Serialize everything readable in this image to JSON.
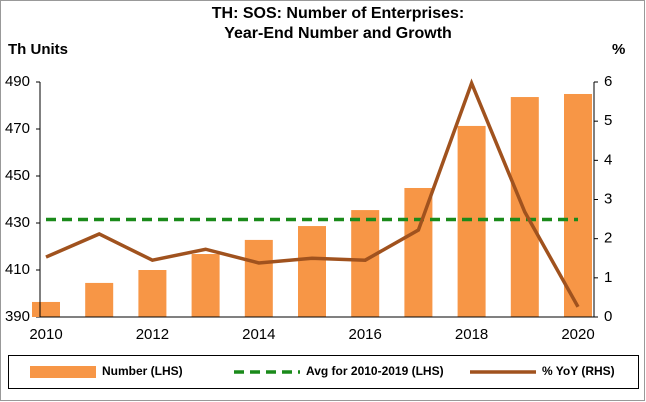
{
  "chart_data": {
    "type": "bar",
    "title": "TH: SOS: Number of Enterprises:",
    "subtitle": "Year-End Number and Growth",
    "y_label": "Th Units",
    "y2_label": "%",
    "categories": [
      "2010",
      null,
      "2012",
      null,
      "2014",
      null,
      "2016",
      null,
      "2018",
      null,
      "2020"
    ],
    "series": [
      {
        "name": "Number (LHS)",
        "type": "bar",
        "color": "#f79646",
        "values": [
          396.4,
          404.5,
          410,
          416.8,
          422.8,
          428.7,
          435.5,
          444.9,
          471.3,
          483.6,
          484.9
        ]
      },
      {
        "name": "Avg for 2010-2019 (LHS)",
        "type": "dashed-line",
        "color": "#1a8a1a",
        "values": [
          431.5,
          431.5,
          431.5,
          431.5,
          431.5,
          431.5,
          431.5,
          431.5,
          431.5,
          431.5,
          431.5
        ]
      },
      {
        "name": "% YoY (RHS)",
        "type": "line",
        "color": "#a0521e",
        "axis": "y2",
        "values": [
          1.53,
          2.12,
          1.45,
          1.73,
          1.38,
          1.5,
          1.45,
          2.22,
          5.97,
          2.68,
          0.26
        ]
      }
    ],
    "ylim": [
      390,
      490
    ],
    "yticks": [
      390,
      410,
      430,
      450,
      470,
      490
    ],
    "y2lim": [
      0,
      6
    ],
    "y2ticks": [
      0,
      1,
      2,
      3,
      4,
      5,
      6
    ],
    "legend": "bottom"
  }
}
